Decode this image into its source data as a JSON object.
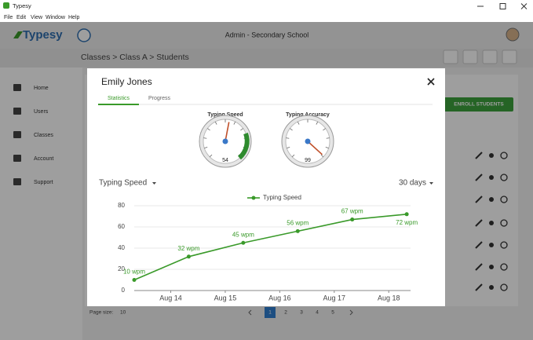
{
  "window": {
    "title": "Typesy",
    "menu": [
      "File",
      "Edit",
      "View",
      "Window",
      "Help"
    ]
  },
  "header": {
    "logo": "Typesy",
    "school": "Admin - Secondary School"
  },
  "breadcrumb": "Classes > Class A > Students",
  "sidebar": [
    "Home",
    "Users",
    "Classes",
    "Account",
    "Support"
  ],
  "enroll_button": "ENROLL STUDENTS",
  "pagination": {
    "page_size_label": "Page size:",
    "page_size": 10,
    "pages": [
      1,
      2,
      3,
      4,
      5
    ]
  },
  "modal": {
    "name": "Emily Jones",
    "tabs": [
      "Statistics",
      "Progress"
    ],
    "gauges": [
      {
        "label": "Typing Speed",
        "value": 54,
        "range": [
          0,
          100
        ]
      },
      {
        "label": "Typing Accuracy",
        "value": 99,
        "range": [
          0,
          100
        ]
      }
    ],
    "metric_select": "Typing Speed",
    "period_select": "30 days"
  },
  "chart_data": {
    "type": "line",
    "x": [
      13.33,
      14.33,
      15.33,
      16.33,
      17.33,
      18.33
    ],
    "series": [
      {
        "name": "Typing Speed",
        "color": "#3a9a2a",
        "values": [
          10,
          32,
          45,
          56,
          67,
          72
        ],
        "value_labels": [
          "10 wpm",
          "32 wpm",
          "45 wpm",
          "56 wpm",
          "67 wpm",
          "72 wpm"
        ]
      }
    ],
    "xlim": [
      13.33,
      18.4
    ],
    "xticks": [
      {
        "value": 14,
        "label": "Aug 14"
      },
      {
        "value": 15,
        "label": "Aug 15"
      },
      {
        "value": 16,
        "label": "Aug 16"
      },
      {
        "value": 17,
        "label": "Aug 17"
      },
      {
        "value": 18,
        "label": "Aug 18"
      }
    ],
    "ylim": [
      0,
      80
    ],
    "yticks": [
      0,
      20,
      40,
      60,
      80
    ],
    "grid": true,
    "legend": "top"
  }
}
